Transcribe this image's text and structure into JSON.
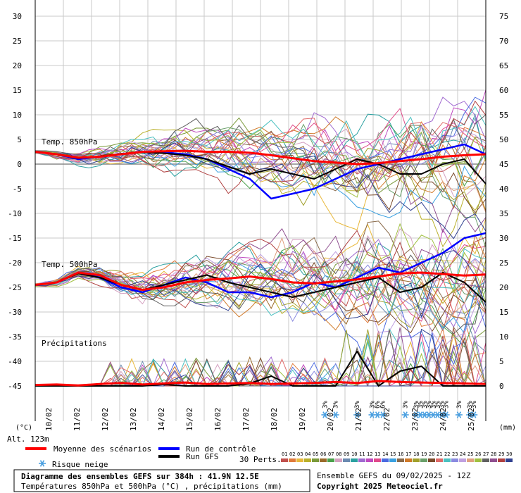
{
  "chart_data": {
    "type": "line",
    "title": "Diagramme des ensembles GEFS sur 384h : 41.9N 12.5E",
    "subtitle": "Températures 850hPa et 500hPa (°C) , précipitations (mm)",
    "run_info": "Ensemble GEFS du 09/02/2025 - 12Z",
    "copyright": "Copyright 2025 Meteociel.fr",
    "left_axis_unit": "(°C)",
    "right_axis_unit": "(mm)",
    "altitude": "Alt. 123m",
    "y_left_ticks": [
      "30",
      "25",
      "20",
      "15",
      "10",
      "5",
      "0",
      "-5",
      "-10",
      "-15",
      "-20",
      "-25",
      "-30",
      "-35",
      "-40",
      "-45"
    ],
    "y_left_values": [
      30,
      25,
      20,
      15,
      10,
      5,
      0,
      -5,
      -10,
      -15,
      -20,
      -25,
      -30,
      -35,
      -40,
      -45
    ],
    "y_right_ticks": [
      "75",
      "70",
      "65",
      "60",
      "55",
      "50",
      "45",
      "40",
      "35",
      "30",
      "25",
      "20",
      "15",
      "10",
      "5",
      "0"
    ],
    "ylim": [
      -45,
      30
    ],
    "grid": true,
    "x_dates": [
      "10/02",
      "11/02",
      "12/02",
      "13/02",
      "14/02",
      "15/02",
      "16/02",
      "17/02",
      "18/02",
      "19/02",
      "20/02",
      "21/02",
      "22/02",
      "23/02",
      "24/02",
      "25/02"
    ],
    "panel_labels": {
      "t850": "Temp. 850hPa",
      "t500": "Temp. 500hPa",
      "precip": "Précipitations"
    },
    "snow_risk": [
      {
        "x": 27.0,
        "label": "3%"
      },
      {
        "x": 28.0,
        "label": "3%"
      },
      {
        "x": 30.0,
        "label": "3%"
      },
      {
        "x": 31.4,
        "label": "3%"
      },
      {
        "x": 31.9,
        "label": "6%"
      },
      {
        "x": 32.4,
        "label": "6%"
      },
      {
        "x": 34.5,
        "label": "3%"
      },
      {
        "x": 35.5,
        "label": "3%"
      },
      {
        "x": 35.9,
        "label": "3%"
      },
      {
        "x": 36.3,
        "label": "3%"
      },
      {
        "x": 36.7,
        "label": "3%"
      },
      {
        "x": 37.1,
        "label": "3%"
      },
      {
        "x": 37.5,
        "label": "3%"
      },
      {
        "x": 37.9,
        "label": "3%"
      },
      {
        "x": 38.3,
        "label": "3%"
      },
      {
        "x": 39.5,
        "label": "3%"
      },
      {
        "x": 40.5,
        "label": "3%"
      },
      {
        "x": 40.9,
        "label": "3%"
      }
    ],
    "legend": {
      "mean": "Moyenne des scénarios",
      "control": "Run de contrôle",
      "gfs": "Run GFS",
      "snow": "Risque neige",
      "perts_title": "30 Perts.",
      "perts": [
        "01",
        "02",
        "03",
        "04",
        "05",
        "06",
        "07",
        "08",
        "09",
        "10",
        "11",
        "12",
        "13",
        "14",
        "15",
        "16",
        "17",
        "18",
        "19",
        "20",
        "21",
        "22",
        "23",
        "24",
        "25",
        "26",
        "27",
        "28",
        "29",
        "30"
      ]
    },
    "colors": {
      "mean": "#ff0000",
      "control": "#0000ff",
      "gfs": "#000000",
      "snow": "#4a9fe0",
      "grid": "#c8c8c8",
      "perts": [
        "#c0504d",
        "#e07a3a",
        "#e8b83a",
        "#b9b02a",
        "#7a9a3a",
        "#9a6a2a",
        "#4aa04a",
        "#d4a0c0",
        "#6a8ab0",
        "#2aa0a0",
        "#a06ad0",
        "#c04ac0",
        "#e04a8a",
        "#4a6ae0",
        "#3aa0e0",
        "#8a6a4a",
        "#d07a2a",
        "#a0a02a",
        "#6aa06a",
        "#7a4a2a",
        "#e06a6a",
        "#4ac0c0",
        "#8a8ae0",
        "#c0a0e0",
        "#e0a080",
        "#a0c040",
        "#606060",
        "#905090",
        "#b04040",
        "#304090"
      ]
    },
    "series": [
      {
        "name": "Moyenne des scénarios",
        "panel": "t850",
        "x": [
          0,
          2,
          4,
          6,
          8,
          10,
          12,
          14,
          16,
          18,
          20,
          22,
          24,
          26,
          28,
          30,
          32,
          34,
          36,
          38,
          40,
          42
        ],
        "values": [
          2.5,
          2,
          1.3,
          1.5,
          2,
          2.5,
          2.6,
          2.7,
          2.5,
          2.5,
          2.3,
          1.8,
          1.2,
          0.6,
          0.3,
          0,
          0.2,
          0.6,
          1.0,
          1.5,
          1.8,
          2.0
        ]
      },
      {
        "name": "Run de contrôle",
        "panel": "t850",
        "x": [
          0,
          2,
          4,
          6,
          8,
          10,
          12,
          14,
          16,
          18,
          20,
          22,
          24,
          26,
          28,
          30,
          32,
          34,
          36,
          38,
          40,
          42
        ],
        "values": [
          2.5,
          2,
          1,
          1.5,
          2,
          2.5,
          2.4,
          2,
          1,
          -1,
          -3,
          -7,
          -6,
          -5,
          -3,
          -1,
          0,
          1,
          2,
          3,
          4,
          2
        ]
      },
      {
        "name": "Run GFS",
        "panel": "t850",
        "x": [
          0,
          2,
          4,
          6,
          8,
          10,
          12,
          14,
          16,
          18,
          20,
          22,
          24,
          26,
          28,
          30,
          32,
          34,
          36,
          38,
          40,
          42
        ],
        "values": [
          2.5,
          2,
          1.2,
          1.6,
          2.1,
          2.4,
          2.2,
          1.8,
          1,
          -0.5,
          -2,
          -1,
          -2,
          -3,
          -1,
          1,
          0,
          -2,
          -2,
          0,
          1,
          -4
        ]
      },
      {
        "name": "Moyenne des scénarios",
        "panel": "t500",
        "x": [
          0,
          2,
          4,
          6,
          8,
          10,
          12,
          14,
          16,
          18,
          20,
          22,
          24,
          26,
          28,
          30,
          32,
          34,
          36,
          38,
          40,
          42
        ],
        "values": [
          -24.5,
          -24,
          -22,
          -22.5,
          -24.5,
          -25.5,
          -25,
          -24,
          -23.5,
          -23.2,
          -22.8,
          -23.3,
          -24,
          -24.2,
          -23.8,
          -23.4,
          -22.8,
          -22.2,
          -22,
          -22.3,
          -22.6,
          -22.4
        ]
      },
      {
        "name": "Run de contrôle",
        "panel": "t500",
        "x": [
          0,
          2,
          4,
          6,
          8,
          10,
          12,
          14,
          16,
          18,
          20,
          22,
          24,
          26,
          28,
          30,
          32,
          34,
          36,
          38,
          40,
          42
        ],
        "values": [
          -24.5,
          -24,
          -22,
          -23,
          -25,
          -26,
          -24.5,
          -23,
          -24,
          -26,
          -26,
          -27,
          -26,
          -24,
          -25,
          -23,
          -21,
          -22,
          -20,
          -18,
          -15,
          -14
        ]
      },
      {
        "name": "Run GFS",
        "panel": "t500",
        "x": [
          0,
          2,
          4,
          6,
          8,
          10,
          12,
          14,
          16,
          18,
          20,
          22,
          24,
          26,
          28,
          30,
          32,
          34,
          36,
          38,
          40,
          42
        ],
        "values": [
          -24.5,
          -24,
          -22.2,
          -23,
          -24.5,
          -25.5,
          -24.5,
          -23.5,
          -22.5,
          -24,
          -25,
          -26,
          -27,
          -26,
          -25,
          -24,
          -23,
          -26,
          -25,
          -22,
          -24,
          -28
        ]
      },
      {
        "name": "Moyenne des scénarios",
        "panel": "precip",
        "x": [
          0,
          2,
          4,
          6,
          8,
          10,
          12,
          14,
          16,
          18,
          20,
          22,
          24,
          26,
          28,
          30,
          32,
          34,
          36,
          38,
          40,
          42
        ],
        "values": [
          0.2,
          0.3,
          0.1,
          0.4,
          0.6,
          0.3,
          0.5,
          0.7,
          0.4,
          0.5,
          0.6,
          0.4,
          0.5,
          0.6,
          0.8,
          0.6,
          1.0,
          0.8,
          0.7,
          0.6,
          0.5,
          0.4
        ]
      },
      {
        "name": "Run GFS",
        "panel": "precip",
        "x": [
          0,
          2,
          4,
          6,
          8,
          10,
          12,
          14,
          16,
          18,
          20,
          22,
          24,
          26,
          28,
          30,
          32,
          34,
          36,
          38,
          40,
          42
        ],
        "values": [
          0,
          0,
          0,
          0,
          0,
          0,
          0.3,
          0,
          0,
          0,
          0.5,
          2,
          0,
          0,
          0,
          7,
          0,
          3,
          4,
          0,
          0,
          0
        ]
      },
      {
        "name": "Run de contrôle",
        "panel": "precip",
        "x": [
          0,
          2,
          4,
          6,
          8,
          10,
          12,
          14,
          16,
          18,
          20,
          22,
          24,
          26,
          28,
          30,
          32,
          34,
          36,
          38,
          40,
          42
        ],
        "values": [
          0,
          0,
          0,
          0,
          0,
          0,
          0,
          0.5,
          1,
          0,
          0,
          0,
          0,
          0,
          0,
          4,
          0,
          1,
          0,
          0,
          0,
          0
        ]
      }
    ]
  }
}
